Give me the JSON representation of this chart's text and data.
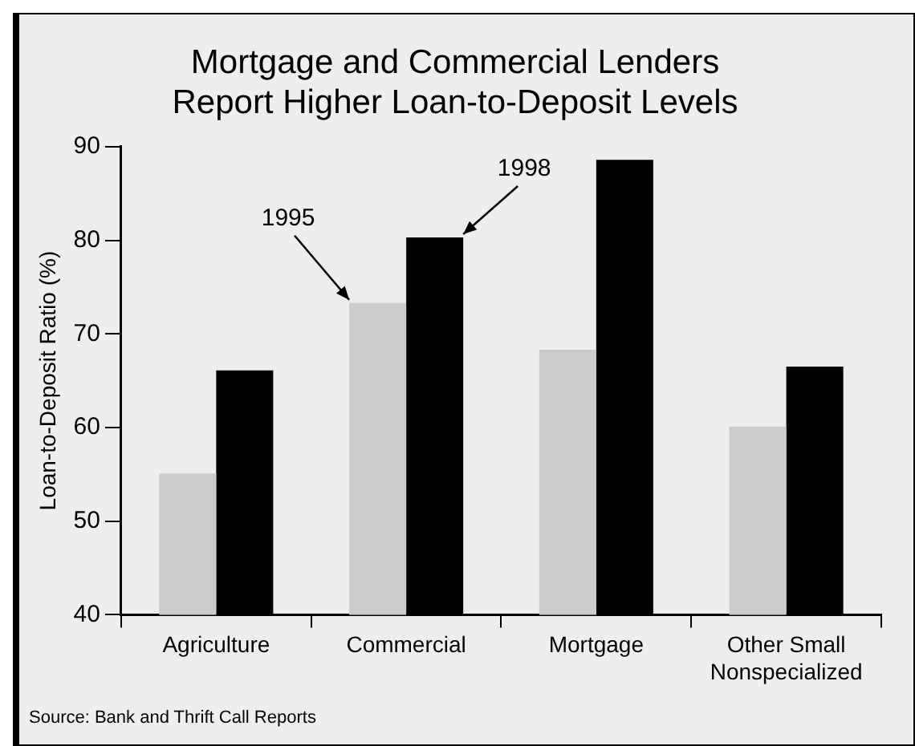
{
  "chart_data": {
    "type": "bar",
    "title": "Mortgage and Commercial Lenders Report Higher Loan-to-Deposit Levels",
    "ylabel": "Loan-to-Deposit Ratio (%)",
    "categories": [
      "Agriculture",
      "Commercial",
      "Mortgage",
      "Other Small Nonspecialized"
    ],
    "series": [
      {
        "name": "1995",
        "color": "#cccccc",
        "values": [
          55.1,
          73.3,
          68.3,
          60.1
        ]
      },
      {
        "name": "1998",
        "color": "#000000",
        "values": [
          66.1,
          80.3,
          88.6,
          66.5
        ]
      }
    ],
    "ylim": [
      40,
      90
    ],
    "yticks": [
      40,
      50,
      60,
      70,
      80,
      90
    ],
    "grid": false,
    "legend": false,
    "annotations": [
      "Source: Bank and Thrift Call Reports"
    ]
  }
}
